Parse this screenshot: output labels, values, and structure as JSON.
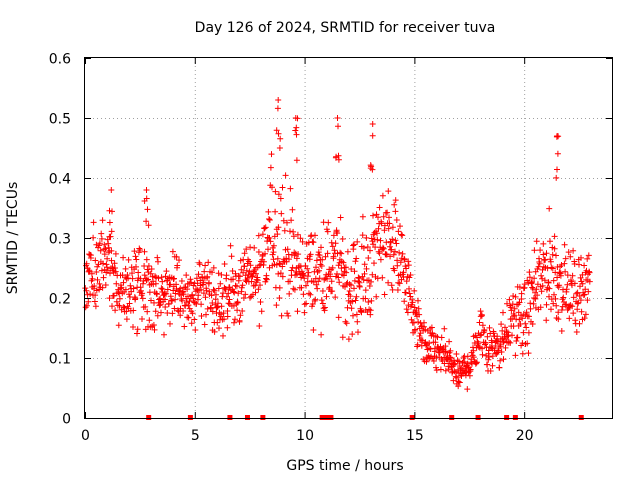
{
  "chart_data": {
    "type": "scatter",
    "title": "Day 126 of 2024, SRMTID for receiver tuva",
    "xlabel": "GPS time / hours",
    "ylabel": "SRMTID / TECUs",
    "xlim": [
      0,
      24
    ],
    "ylim": [
      0,
      0.6
    ],
    "x_ticks": [
      0,
      5,
      10,
      15,
      20
    ],
    "x_tick_labels": [
      "0",
      "5",
      "10",
      "15",
      "20"
    ],
    "y_ticks": [
      0,
      0.1,
      0.2,
      0.3,
      0.4,
      0.5,
      0.6
    ],
    "y_tick_labels": [
      "0",
      "0.1",
      "0.2",
      "0.3",
      "0.4",
      "0.5",
      "0.6"
    ],
    "grid": true,
    "marker": "plus",
    "color": "#ff0000",
    "gap_markers_x": [
      2.9,
      4.8,
      6.6,
      7.4,
      8.1,
      10.8,
      11.0,
      11.2,
      14.9,
      16.7,
      17.9,
      19.2,
      19.6,
      22.6
    ],
    "series_envelope": {
      "x_hours": [
        0,
        0.5,
        1,
        1.5,
        2,
        2.5,
        3,
        3.5,
        4,
        4.5,
        5,
        5.5,
        6,
        6.5,
        7,
        7.5,
        8,
        8.5,
        9,
        9.5,
        10,
        10.5,
        11,
        11.5,
        12,
        12.5,
        13,
        13.5,
        14,
        14.5,
        15,
        15.5,
        16,
        16.5,
        17,
        17.5,
        18,
        18.5,
        19,
        19.5,
        20,
        20.5,
        21,
        21.5,
        22,
        22.5,
        23
      ],
      "mean": [
        0.23,
        0.25,
        0.28,
        0.22,
        0.21,
        0.23,
        0.22,
        0.2,
        0.22,
        0.2,
        0.19,
        0.22,
        0.2,
        0.2,
        0.22,
        0.24,
        0.22,
        0.32,
        0.3,
        0.25,
        0.24,
        0.24,
        0.25,
        0.25,
        0.22,
        0.22,
        0.25,
        0.31,
        0.3,
        0.25,
        0.17,
        0.12,
        0.11,
        0.1,
        0.07,
        0.09,
        0.14,
        0.12,
        0.13,
        0.17,
        0.16,
        0.21,
        0.25,
        0.24,
        0.21,
        0.21,
        0.24
      ],
      "spread": [
        0.04,
        0.07,
        0.05,
        0.05,
        0.05,
        0.06,
        0.05,
        0.05,
        0.04,
        0.04,
        0.05,
        0.05,
        0.05,
        0.05,
        0.05,
        0.05,
        0.06,
        0.09,
        0.1,
        0.07,
        0.06,
        0.06,
        0.07,
        0.06,
        0.07,
        0.07,
        0.07,
        0.07,
        0.07,
        0.05,
        0.04,
        0.03,
        0.03,
        0.03,
        0.02,
        0.03,
        0.04,
        0.04,
        0.04,
        0.04,
        0.05,
        0.05,
        0.07,
        0.07,
        0.05,
        0.05,
        0.04
      ]
    },
    "points_per_hour": 60,
    "peaks": [
      {
        "x": 8.8,
        "y": 0.53
      },
      {
        "x": 9.6,
        "y": 0.5
      },
      {
        "x": 11.5,
        "y": 0.5
      },
      {
        "x": 13.1,
        "y": 0.49
      },
      {
        "x": 21.5,
        "y": 0.47
      },
      {
        "x": 1.2,
        "y": 0.38
      },
      {
        "x": 2.8,
        "y": 0.38
      }
    ]
  }
}
